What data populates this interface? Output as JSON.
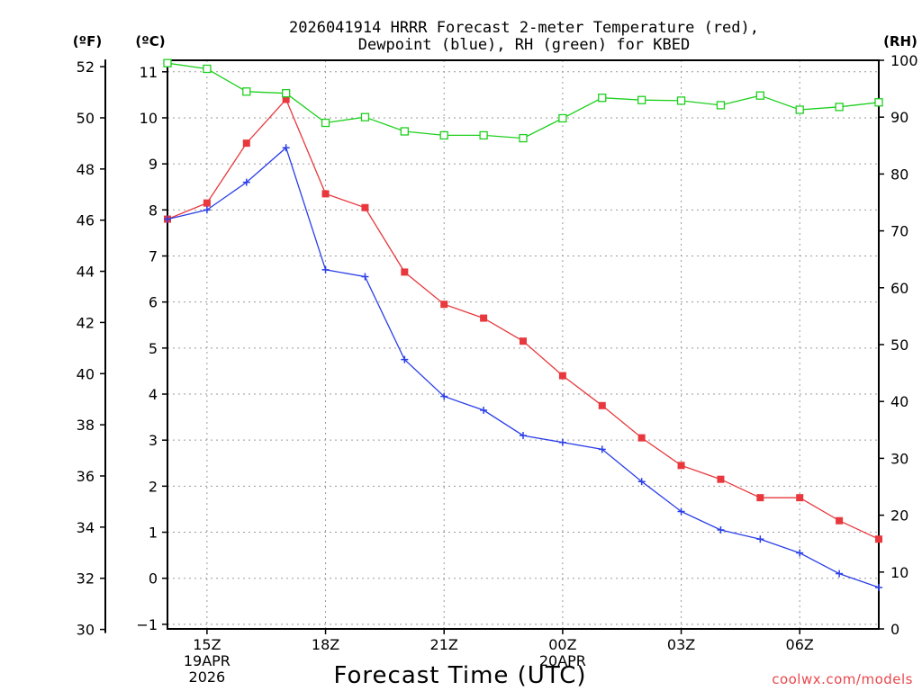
{
  "chart_data": {
    "type": "line",
    "title_line1": "2026041914 HRRR Forecast 2-meter Temperature (red),",
    "title_line2": "Dewpoint (blue), RH (green) for KBED",
    "left_unit_f": "(ºF)",
    "left_unit_c": "(ºC)",
    "right_unit": "(RH)",
    "xlabel": "Forecast Time (UTC)",
    "credit": "coolwx.com/models",
    "x_hours": [
      14,
      15,
      16,
      17,
      18,
      19,
      20,
      21,
      22,
      23,
      24,
      25,
      26,
      27,
      28,
      29,
      30,
      31,
      32
    ],
    "xlim": [
      14,
      32
    ],
    "x_ticks": [
      {
        "hour": 15,
        "label": "15Z",
        "sub1": "19APR",
        "sub2": "2026"
      },
      {
        "hour": 18,
        "label": "18Z",
        "sub1": "",
        "sub2": ""
      },
      {
        "hour": 21,
        "label": "21Z",
        "sub1": "",
        "sub2": ""
      },
      {
        "hour": 24,
        "label": "00Z",
        "sub1": "20APR",
        "sub2": ""
      },
      {
        "hour": 27,
        "label": "03Z",
        "sub1": "",
        "sub2": ""
      },
      {
        "hour": 30,
        "label": "06Z",
        "sub1": "",
        "sub2": ""
      }
    ],
    "celsius_lim": [
      -1.1,
      11.25
    ],
    "celsius_ticks": [
      "-1",
      "0",
      "1",
      "2",
      "3",
      "4",
      "5",
      "6",
      "7",
      "8",
      "9",
      "10",
      "11"
    ],
    "fahrenheit_ticks": [
      "30",
      "32",
      "34",
      "36",
      "38",
      "40",
      "42",
      "44",
      "46",
      "48",
      "50",
      "52"
    ],
    "rh_lim": [
      0,
      100
    ],
    "rh_ticks": [
      "0",
      "10",
      "20",
      "30",
      "40",
      "50",
      "60",
      "70",
      "80",
      "90",
      "100"
    ],
    "series": [
      {
        "name": "2-meter Temperature",
        "unit": "C",
        "color": "#e8383d",
        "marker": "filled-square",
        "values": [
          7.8,
          8.15,
          9.45,
          10.4,
          8.35,
          8.05,
          6.65,
          5.95,
          5.65,
          5.15,
          4.4,
          3.75,
          3.05,
          2.45,
          2.15,
          1.75,
          1.75,
          1.25,
          0.85
        ]
      },
      {
        "name": "Dewpoint",
        "unit": "C",
        "color": "#2b3fe8",
        "marker": "plus",
        "values": [
          7.8,
          8.0,
          8.6,
          9.35,
          6.7,
          6.55,
          4.75,
          3.95,
          3.65,
          3.1,
          2.95,
          2.8,
          2.1,
          1.45,
          1.05,
          0.85,
          0.55,
          0.1,
          -0.2
        ]
      },
      {
        "name": "RH",
        "unit": "%",
        "color": "#1ed01e",
        "marker": "open-square",
        "values": [
          99.5,
          98.5,
          94.5,
          94.2,
          89.0,
          90.0,
          87.5,
          86.8,
          86.8,
          86.3,
          89.8,
          93.4,
          93.0,
          92.9,
          92.1,
          93.8,
          91.3,
          91.8,
          92.6
        ]
      }
    ]
  }
}
